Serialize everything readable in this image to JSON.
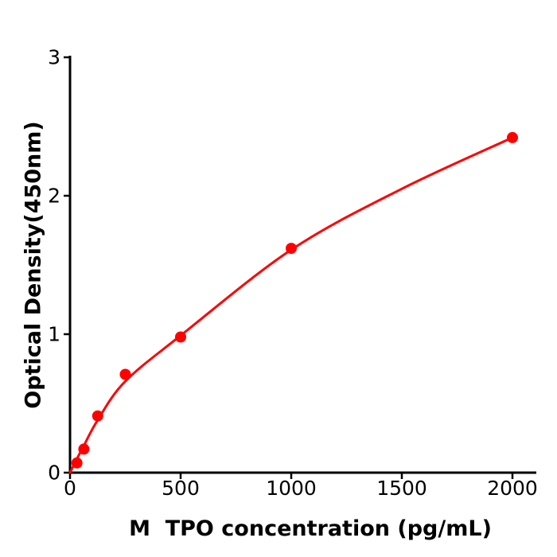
{
  "figure": {
    "background": "#ffffff",
    "kind": "elisa-standard-curve"
  },
  "chart_data": {
    "type": "scatter",
    "title": "",
    "xlabel": "M  TPO concentration (pg/mL)",
    "ylabel": "Optical Density(450nm)",
    "x": [
      31.25,
      62.5,
      125,
      250,
      500,
      1000,
      2000
    ],
    "y": [
      0.07,
      0.17,
      0.41,
      0.71,
      0.98,
      1.62,
      2.42
    ],
    "fit_curve_points": [
      [
        0,
        0.0
      ],
      [
        31.25,
        0.1
      ],
      [
        62.5,
        0.195
      ],
      [
        125,
        0.38
      ],
      [
        250,
        0.66
      ],
      [
        500,
        0.99
      ],
      [
        1000,
        1.61
      ],
      [
        1500,
        2.05
      ],
      [
        2000,
        2.42
      ]
    ],
    "xticks": [
      0,
      500,
      1000,
      1500,
      2000
    ],
    "yticks": [
      0,
      1,
      2,
      3
    ],
    "xlim": [
      0,
      2107
    ],
    "ylim": [
      0,
      3
    ],
    "grid": false,
    "legend": null,
    "point_color": "#ff0000",
    "line_color": "#ff0000",
    "axis_color": "#000000",
    "marker_radius": 7
  }
}
